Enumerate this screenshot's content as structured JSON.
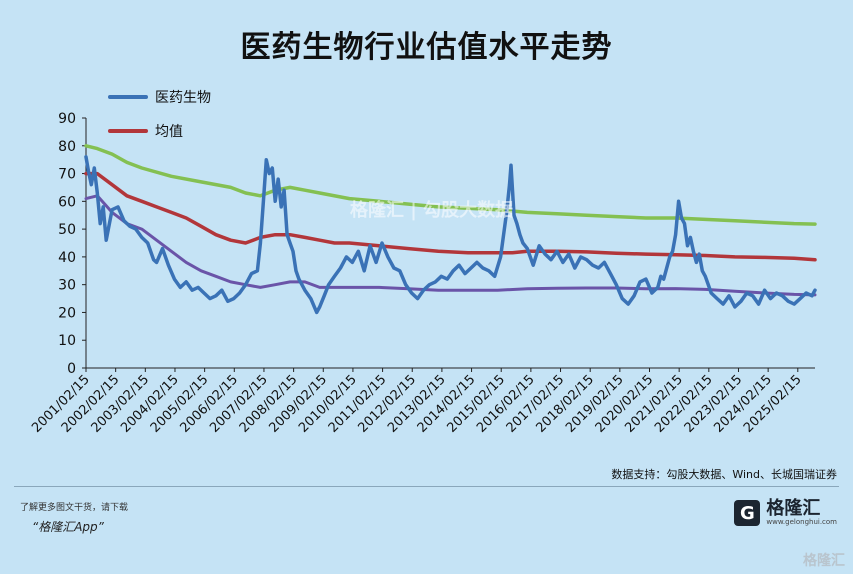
{
  "chart_data": {
    "type": "line",
    "title": "医药生物行业估值水平走势",
    "ylim": [
      0,
      90
    ],
    "yticks": [
      0,
      10,
      20,
      30,
      40,
      50,
      60,
      70,
      80,
      90
    ],
    "xlim": [
      2001.12,
      2025.7
    ],
    "xticks": [
      "2001/02/15",
      "2002/02/15",
      "2003/02/15",
      "2004/02/15",
      "2005/02/15",
      "2006/02/15",
      "2007/02/15",
      "2008/02/15",
      "2009/02/15",
      "2010/02/15",
      "2011/02/15",
      "2012/02/15",
      "2013/02/15",
      "2014/02/15",
      "2015/02/15",
      "2016/02/15",
      "2017/02/15",
      "2018/02/15",
      "2019/02/15",
      "2020/02/15",
      "2021/02/15",
      "2022/02/15",
      "2023/02/15",
      "2024/02/15",
      "2025/02/15"
    ],
    "legend_position": "top-left",
    "grid": false,
    "series": [
      {
        "name": "医药生物",
        "color": "#3a72b6",
        "x": [
          2001.12,
          2001.2,
          2001.3,
          2001.4,
          2001.5,
          2001.6,
          2001.7,
          2001.8,
          2002.0,
          2002.2,
          2002.4,
          2002.6,
          2002.8,
          2003.0,
          2003.2,
          2003.4,
          2003.5,
          2003.7,
          2003.9,
          2004.1,
          2004.3,
          2004.5,
          2004.7,
          2004.9,
          2005.1,
          2005.3,
          2005.5,
          2005.7,
          2005.9,
          2006.1,
          2006.3,
          2006.5,
          2006.7,
          2006.9,
          2007.0,
          2007.1,
          2007.2,
          2007.3,
          2007.4,
          2007.5,
          2007.6,
          2007.7,
          2007.8,
          2007.9,
          2008.0,
          2008.1,
          2008.2,
          2008.3,
          2008.5,
          2008.7,
          2008.9,
          2009.0,
          2009.15,
          2009.3,
          2009.5,
          2009.7,
          2009.9,
          2010.1,
          2010.3,
          2010.5,
          2010.7,
          2010.9,
          2011.1,
          2011.3,
          2011.5,
          2011.7,
          2011.9,
          2012.1,
          2012.3,
          2012.5,
          2012.7,
          2012.9,
          2013.1,
          2013.3,
          2013.5,
          2013.7,
          2013.9,
          2014.1,
          2014.3,
          2014.5,
          2014.7,
          2014.9,
          2015.1,
          2015.2,
          2015.3,
          2015.4,
          2015.45,
          2015.55,
          2015.65,
          2015.75,
          2015.85,
          2016.0,
          2016.2,
          2016.4,
          2016.6,
          2016.8,
          2017.0,
          2017.2,
          2017.4,
          2017.6,
          2017.8,
          2018.0,
          2018.2,
          2018.4,
          2018.6,
          2018.8,
          2019.0,
          2019.2,
          2019.4,
          2019.6,
          2019.8,
          2020.0,
          2020.2,
          2020.4,
          2020.5,
          2020.6,
          2020.7,
          2020.8,
          2020.9,
          2021.0,
          2021.1,
          2021.2,
          2021.3,
          2021.4,
          2021.5,
          2021.6,
          2021.7,
          2021.8,
          2021.9,
          2022.0,
          2022.2,
          2022.4,
          2022.6,
          2022.8,
          2023.0,
          2023.2,
          2023.4,
          2023.6,
          2023.8,
          2024.0,
          2024.2,
          2024.4,
          2024.6,
          2024.8,
          2025.0,
          2025.2,
          2025.4,
          2025.6,
          2025.7
        ],
        "values": [
          76,
          71,
          66,
          72,
          63,
          52,
          58,
          46,
          57,
          58,
          53,
          51,
          50,
          47,
          45,
          39,
          38,
          43,
          37,
          32,
          29,
          31,
          28,
          29,
          27,
          25,
          26,
          28,
          24,
          25,
          27,
          30,
          34,
          35,
          45,
          60,
          75,
          70,
          72,
          60,
          68,
          58,
          64,
          48,
          45,
          42,
          35,
          32,
          28,
          25,
          20,
          22,
          26,
          30,
          33,
          36,
          40,
          38,
          42,
          35,
          44,
          38,
          45,
          40,
          36,
          35,
          30,
          27,
          25,
          28,
          30,
          31,
          33,
          32,
          35,
          37,
          34,
          36,
          38,
          36,
          35,
          33,
          40,
          48,
          56,
          66,
          73,
          55,
          52,
          48,
          45,
          43,
          37,
          44,
          41,
          39,
          42,
          38,
          41,
          36,
          40,
          39,
          37,
          36,
          38,
          34,
          30,
          25,
          23,
          26,
          31,
          32,
          27,
          29,
          33,
          32,
          36,
          40,
          42,
          48,
          60,
          54,
          52,
          44,
          47,
          42,
          38,
          41,
          35,
          33,
          27,
          25,
          23,
          26,
          22,
          24,
          27,
          26,
          23,
          28,
          25,
          27,
          26,
          24,
          23,
          25,
          27,
          26,
          28
        ]
      },
      {
        "name": "均值",
        "color": "#b2363a",
        "x": [
          2001.12,
          2001.5,
          2002.0,
          2002.5,
          2003.0,
          2003.5,
          2004.0,
          2004.5,
          2005.0,
          2005.5,
          2006.0,
          2006.5,
          2007.0,
          2007.5,
          2008.0,
          2008.5,
          2009.0,
          2009.5,
          2010.0,
          2011.0,
          2012.0,
          2013.0,
          2014.0,
          2015.0,
          2015.5,
          2016.0,
          2017.0,
          2018.0,
          2019.0,
          2020.0,
          2021.0,
          2022.0,
          2023.0,
          2024.0,
          2025.0,
          2025.7
        ],
        "values": [
          70,
          70,
          66,
          62,
          60,
          58,
          56,
          54,
          51,
          48,
          46,
          45,
          47,
          48,
          48,
          47,
          46,
          45,
          45,
          44,
          43,
          42,
          41.5,
          41.5,
          41.5,
          42,
          42,
          41.8,
          41.3,
          41,
          40.8,
          40.5,
          40,
          39.8,
          39.5,
          39
        ]
      },
      {
        "name": "",
        "color": "#84c052",
        "x": [
          2001.12,
          2001.5,
          2002.0,
          2002.5,
          2003.0,
          2004.0,
          2005.0,
          2006.0,
          2006.5,
          2007.0,
          2007.5,
          2008.0,
          2008.5,
          2009.0,
          2010.0,
          2011.0,
          2012.0,
          2013.0,
          2014.0,
          2015.0,
          2016.0,
          2017.0,
          2018.0,
          2019.0,
          2020.0,
          2021.0,
          2022.0,
          2023.0,
          2024.0,
          2025.0,
          2025.7
        ],
        "values": [
          80,
          79,
          77,
          74,
          72,
          69,
          67,
          65,
          63,
          62,
          64,
          65,
          64,
          63,
          61,
          60,
          59,
          58,
          57.5,
          57,
          56,
          55.5,
          55,
          54.5,
          54,
          54,
          53.5,
          53,
          52.5,
          52,
          51.8
        ]
      },
      {
        "name": "",
        "color": "#6a54a8",
        "x": [
          2001.12,
          2001.5,
          2002.0,
          2002.5,
          2003.0,
          2003.5,
          2004.0,
          2004.5,
          2005.0,
          2005.5,
          2006.0,
          2006.5,
          2007.0,
          2007.5,
          2008.0,
          2008.5,
          2009.0,
          2010.0,
          2011.0,
          2012.0,
          2013.0,
          2014.0,
          2015.0,
          2016.0,
          2017.0,
          2018.0,
          2019.0,
          2020.0,
          2021.0,
          2022.0,
          2023.0,
          2024.0,
          2025.0,
          2025.7
        ],
        "values": [
          61,
          62,
          56,
          52,
          50,
          46,
          42,
          38,
          35,
          33,
          31,
          30,
          29,
          30,
          31,
          31,
          29,
          29,
          29,
          28.5,
          28,
          28,
          28,
          28.5,
          28.7,
          28.8,
          28.8,
          28.5,
          28.6,
          28.3,
          27.6,
          27,
          26.5,
          26.3
        ]
      }
    ]
  },
  "source_text": "数据支持：勾股大数据、Wind、长城国瑞证券",
  "footer": {
    "note_line1": "了解更多图文干货，请下载",
    "note_line2": "“格隆汇App”",
    "logo_mark": "G",
    "logo_name": "格隆汇",
    "logo_url": "www.gelonghui.com",
    "watermark_bottom": "格隆汇",
    "watermark_center": "格隆汇 | 勾股大数据"
  }
}
